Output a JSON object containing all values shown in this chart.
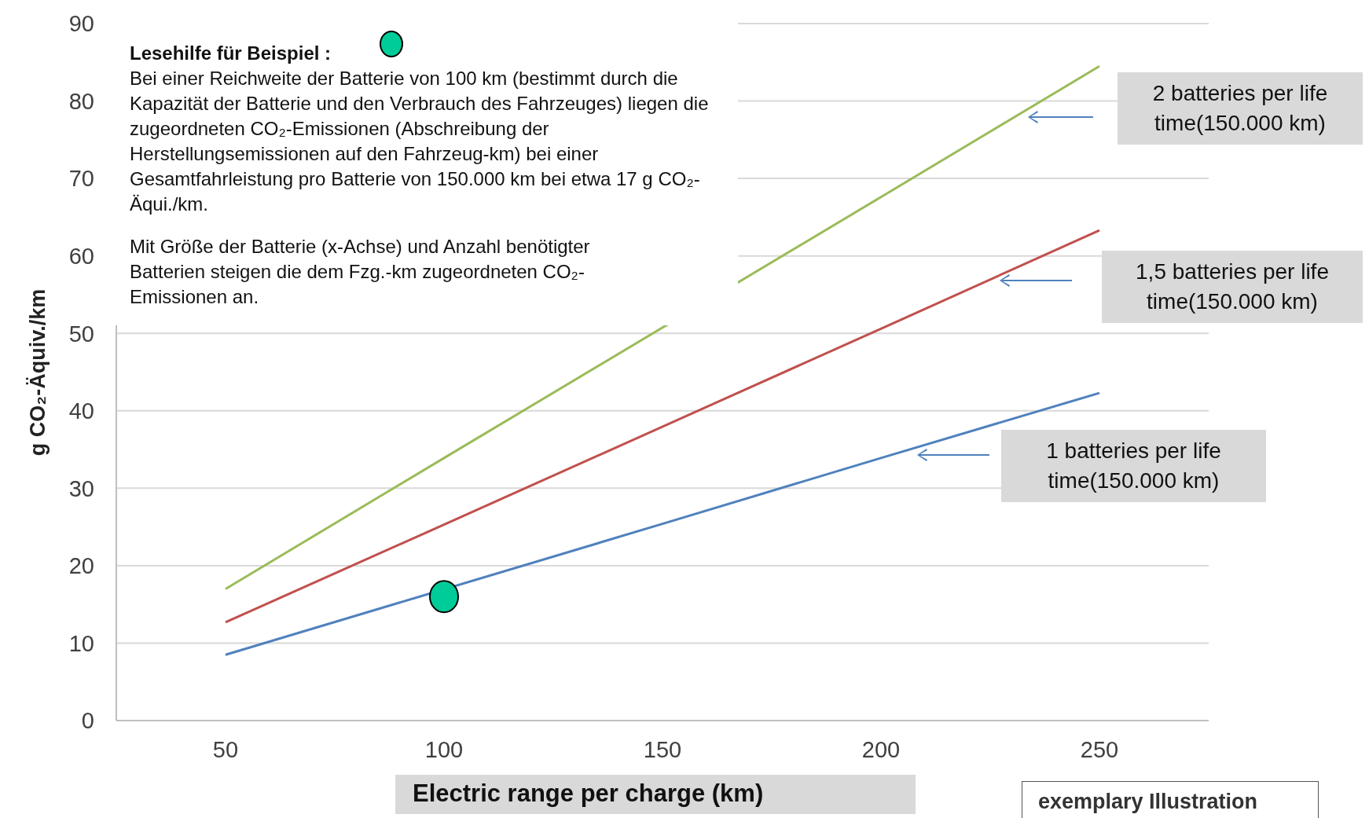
{
  "chart_data": {
    "type": "line",
    "xlabel": "Electric range per charge (km)",
    "ylabel": "g CO₂-Äquiv./km",
    "xlim": [
      25,
      275
    ],
    "xticks": [
      50,
      100,
      150,
      200,
      250
    ],
    "ylim": [
      0,
      90
    ],
    "yticks": [
      0,
      10,
      20,
      30,
      40,
      50,
      60,
      70,
      80,
      90
    ],
    "grid": "y",
    "legend": false,
    "series": [
      {
        "name": "2 batteries per life time(150.000 km)",
        "color": "#9bbb59",
        "x": [
          50,
          100,
          200,
          250
        ],
        "values": [
          17,
          33.9,
          67.6,
          84.5
        ]
      },
      {
        "name": "1,5 batteries per life time(150.000 km)",
        "color": "#c0504d",
        "x": [
          50,
          100,
          200,
          250
        ],
        "values": [
          12.7,
          25.3,
          50.6,
          63.3
        ]
      },
      {
        "name": "1 batteries per life time(150.000 km)",
        "color": "#4f81bd",
        "x": [
          50,
          150,
          200,
          250
        ],
        "values": [
          8.5,
          25.4,
          33.9,
          42.3
        ]
      },
      {
        "type": "scatter",
        "color": "#00cc99",
        "marker": "circle",
        "x": [
          100
        ],
        "values": [
          16
        ]
      }
    ],
    "annotations": [
      "Lesehilfe für Beispiel :",
      "Bei einer Reichweite der Batterie von 100 km (bestimmt durch die Kapazität der Batterie und den Verbrauch des Fahrzeuges) liegen die zugeordneten CO₂-Emissionen (Abschreibung der Herstellungsemissionen auf den Fahrzeug-km) bei einer Gesamtfahrleistung pro Batterie von 150.000 km  bei etwa 17 g CO₂-Äqui./km.",
      "Mit Größe der Batterie (x-Achse) und Anzahl benötigter Batterien steigen die dem Fzg.-km zugeordneten CO₂-Emissionen an.",
      "exemplary Illustration"
    ]
  }
}
